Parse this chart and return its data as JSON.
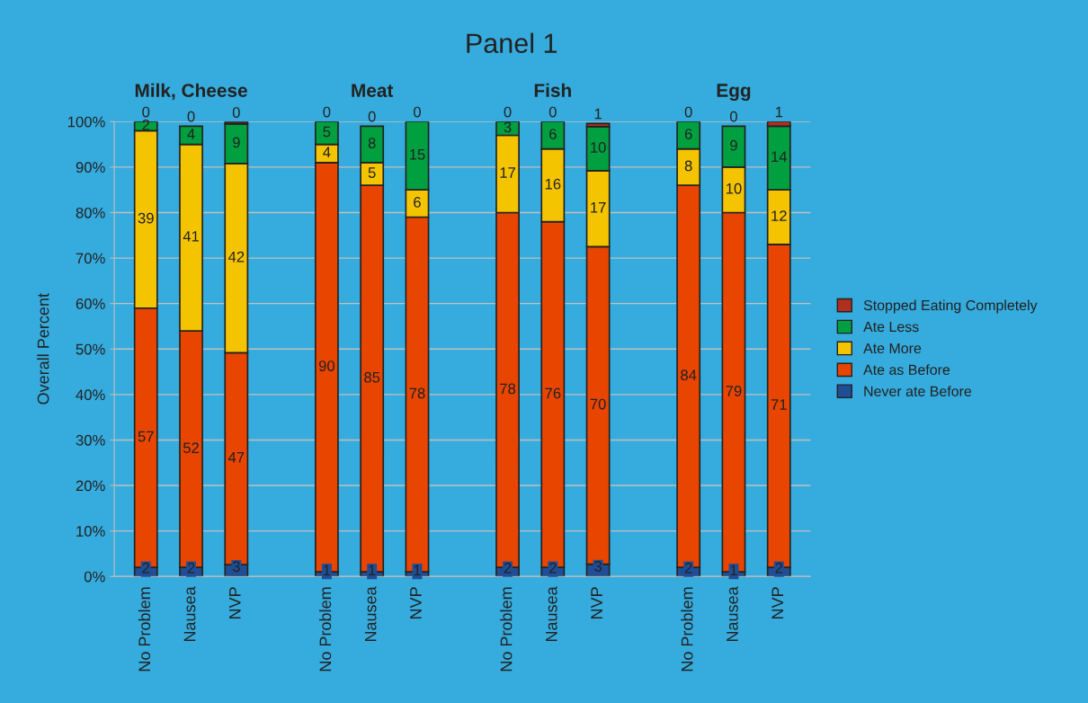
{
  "chart_data": {
    "type": "bar",
    "stacked": true,
    "title": "Panel 1",
    "ylabel": "Overall Percent",
    "categories": [
      "No Problem",
      "Nausea",
      "NVP",
      null,
      "No Problem",
      "Nausea",
      "NVP",
      null,
      "No Problem",
      "Nausea",
      "NVP",
      null,
      "No Problem",
      "Nausea",
      "NVP"
    ],
    "annotations": [
      "Milk, Cheese",
      "Meat",
      "Fish",
      "Egg"
    ],
    "series": [
      {
        "name": "Never ate Before",
        "color": "#1f4e96",
        "values": [
          2,
          2,
          2.6,
          null,
          1,
          1,
          1,
          null,
          2,
          2,
          2.7,
          null,
          2,
          1,
          2
        ],
        "value_labels": [
          "2",
          "2",
          "3",
          null,
          "1",
          "1",
          "1",
          null,
          "2",
          "2",
          "3",
          null,
          "2",
          "1",
          "2"
        ]
      },
      {
        "name": "Ate as Before",
        "color": "#e84500",
        "values": [
          57,
          52,
          46.6,
          null,
          90,
          85,
          78,
          null,
          78,
          76,
          69.8,
          null,
          84,
          79,
          71
        ],
        "value_labels": [
          "57",
          "52",
          "47",
          null,
          "90",
          "85",
          "78",
          null,
          "78",
          "76",
          "70",
          null,
          "84",
          "79",
          "71"
        ]
      },
      {
        "name": "Ate More",
        "color": "#f5c400",
        "values": [
          39,
          41,
          41.6,
          null,
          4,
          5,
          6,
          null,
          17,
          16,
          16.7,
          null,
          8,
          10,
          12
        ],
        "value_labels": [
          "39",
          "41",
          "42",
          null,
          "4",
          "5",
          "6",
          null,
          "17",
          "16",
          "17",
          null,
          "8",
          "10",
          "12"
        ]
      },
      {
        "name": "Ate Less",
        "color": "#00a040",
        "values": [
          2,
          4,
          8.7,
          null,
          5,
          8,
          15,
          null,
          3,
          6,
          9.7,
          null,
          6,
          9,
          14
        ],
        "value_labels": [
          "2",
          "4",
          "9",
          null,
          "5",
          "8",
          "15",
          null,
          "3",
          "6",
          "10",
          null,
          "6",
          "9",
          "14"
        ]
      },
      {
        "name": "Stopped Eating Completely",
        "color": "#b03020",
        "values": [
          0,
          0,
          0.4,
          null,
          0,
          0,
          0,
          null,
          0,
          0,
          0.7,
          null,
          0,
          0,
          1
        ],
        "value_labels": [
          "0",
          "0",
          "0",
          null,
          "0",
          "0",
          "0",
          null,
          "0",
          "0",
          "1",
          null,
          "0",
          "0",
          "1"
        ]
      }
    ],
    "ylim": [
      0,
      100
    ],
    "yticks": [
      {
        "value": 0,
        "label": "0%"
      },
      {
        "value": 10,
        "label": "10%"
      },
      {
        "value": 20,
        "label": "20%"
      },
      {
        "value": 30,
        "label": "30%"
      },
      {
        "value": 40,
        "label": "40%"
      },
      {
        "value": 50,
        "label": "50%"
      },
      {
        "value": 60,
        "label": "60%"
      },
      {
        "value": 70,
        "label": "70%"
      },
      {
        "value": 80,
        "label": "80%"
      },
      {
        "value": 90,
        "label": "90%"
      },
      {
        "value": 100,
        "label": "100%"
      }
    ],
    "grid": "y",
    "legend": "right"
  }
}
